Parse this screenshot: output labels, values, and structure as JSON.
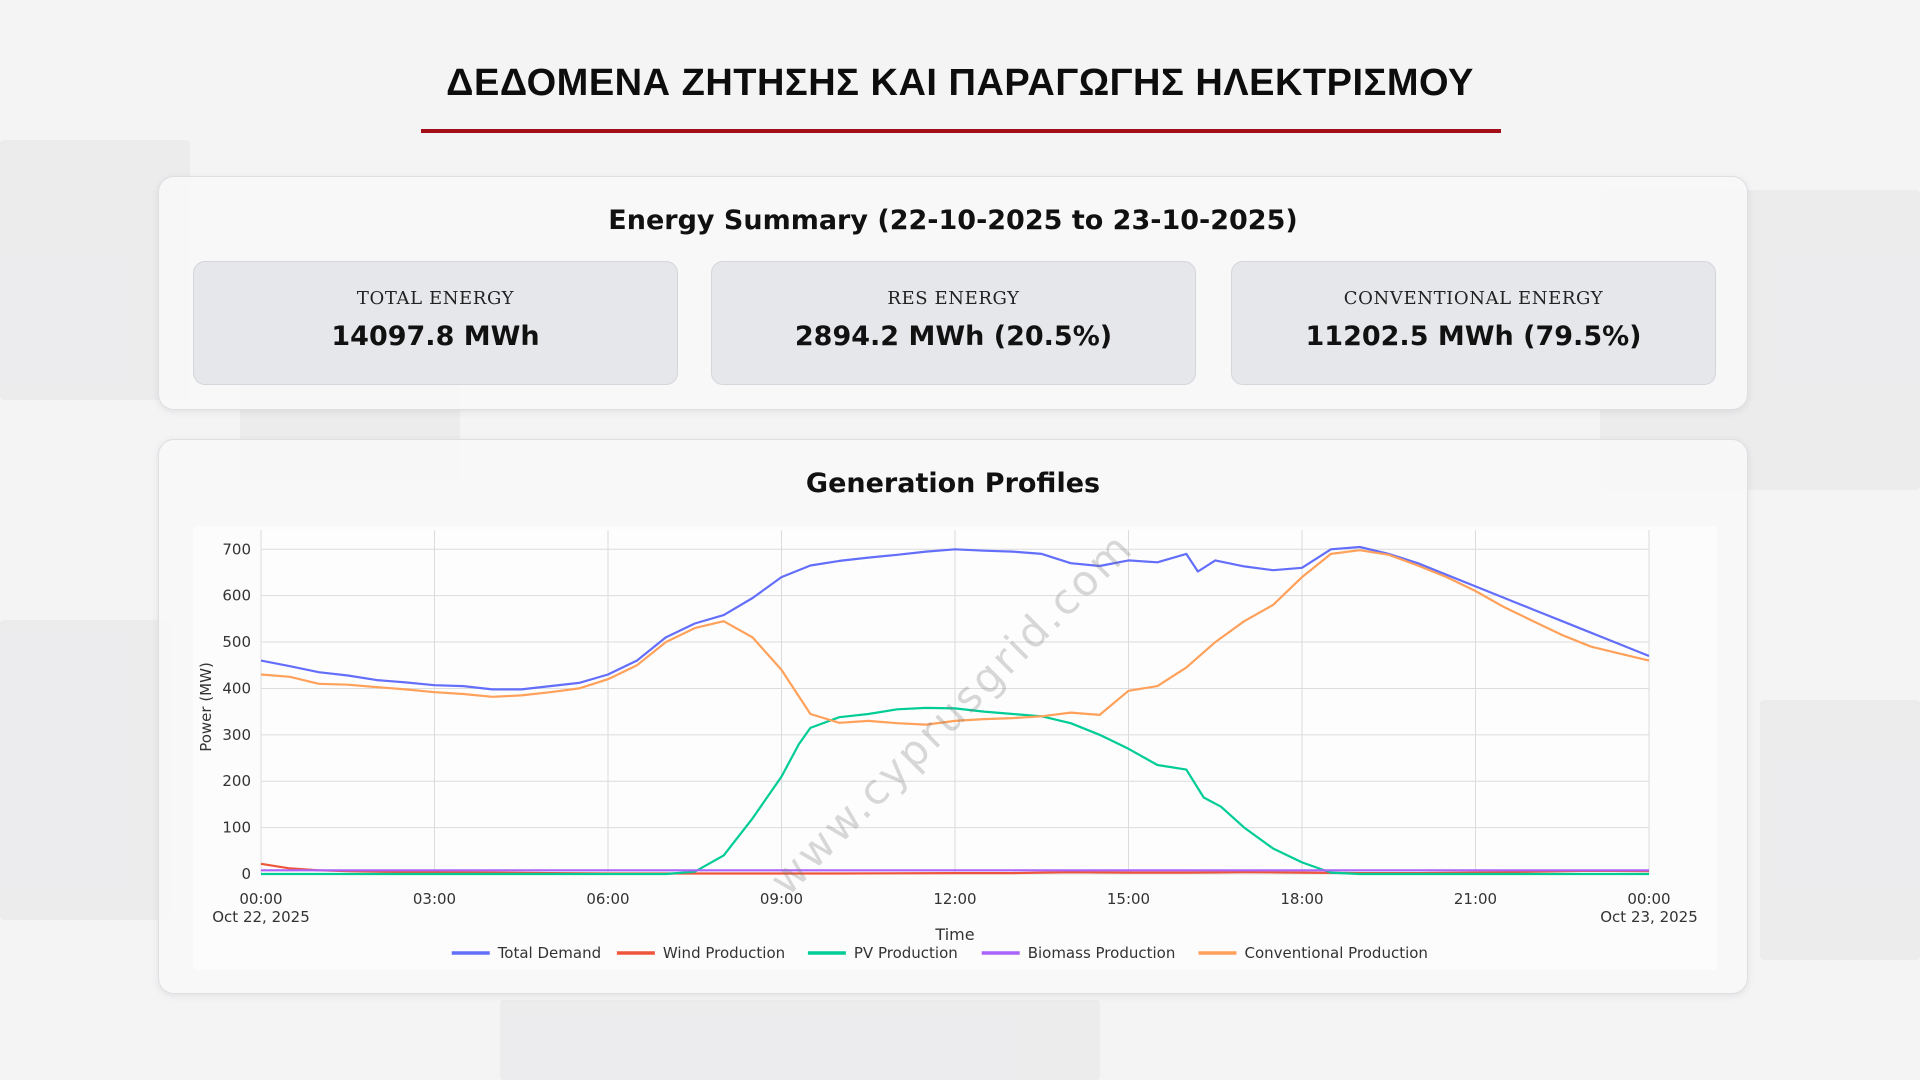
{
  "page": {
    "title": "ΔΕΔΟΜΕΝΑ ΖΗΤΗΣΗΣ ΚΑΙ ΠΑΡΑΓΩΓΗΣ ΗΛΕΚΤΡΙΣΜΟΥ",
    "accent_color": "#a30e1a",
    "watermark": "www.cyprusgrid.com"
  },
  "summary": {
    "heading": "Energy Summary (22-10-2025 to 23-10-2025)",
    "cards": [
      {
        "label": "TOTAL ENERGY",
        "value": "14097.8 MWh"
      },
      {
        "label": "RES ENERGY",
        "value": "2894.2 MWh (20.5%)"
      },
      {
        "label": "CONVENTIONAL ENERGY",
        "value": "11202.5 MWh (79.5%)"
      }
    ]
  },
  "profiles": {
    "heading": "Generation Profiles"
  },
  "chart_data": {
    "type": "line",
    "title": "Generation Profiles",
    "xlabel": "Time",
    "ylabel": "Power (MW)",
    "ylim": [
      0,
      720
    ],
    "yticks": [
      0,
      100,
      200,
      300,
      400,
      500,
      600,
      700
    ],
    "xlim": [
      0,
      24
    ],
    "xticks": [
      {
        "x": 0,
        "label": "00:00",
        "sublabel": "Oct 22, 2025"
      },
      {
        "x": 3,
        "label": "03:00",
        "sublabel": ""
      },
      {
        "x": 6,
        "label": "06:00",
        "sublabel": ""
      },
      {
        "x": 9,
        "label": "09:00",
        "sublabel": ""
      },
      {
        "x": 12,
        "label": "12:00",
        "sublabel": ""
      },
      {
        "x": 15,
        "label": "15:00",
        "sublabel": ""
      },
      {
        "x": 18,
        "label": "18:00",
        "sublabel": ""
      },
      {
        "x": 21,
        "label": "21:00",
        "sublabel": ""
      },
      {
        "x": 24,
        "label": "00:00",
        "sublabel": "Oct 23, 2025"
      }
    ],
    "grid": true,
    "legend_position": "bottom",
    "series": [
      {
        "name": "Total Demand",
        "color": "#636efa",
        "points": [
          [
            0,
            460
          ],
          [
            0.5,
            448
          ],
          [
            1,
            435
          ],
          [
            1.5,
            428
          ],
          [
            2,
            418
          ],
          [
            2.5,
            413
          ],
          [
            3,
            407
          ],
          [
            3.5,
            405
          ],
          [
            4,
            398
          ],
          [
            4.5,
            398
          ],
          [
            5,
            405
          ],
          [
            5.5,
            412
          ],
          [
            6,
            430
          ],
          [
            6.5,
            460
          ],
          [
            7,
            510
          ],
          [
            7.5,
            540
          ],
          [
            8,
            558
          ],
          [
            8.5,
            595
          ],
          [
            9,
            640
          ],
          [
            9.5,
            665
          ],
          [
            10,
            675
          ],
          [
            10.5,
            682
          ],
          [
            11,
            688
          ],
          [
            11.5,
            695
          ],
          [
            12,
            700
          ],
          [
            12.5,
            697
          ],
          [
            13,
            695
          ],
          [
            13.5,
            690
          ],
          [
            14,
            670
          ],
          [
            14.5,
            664
          ],
          [
            15,
            676
          ],
          [
            15.5,
            672
          ],
          [
            16,
            690
          ],
          [
            16.2,
            652
          ],
          [
            16.5,
            676
          ],
          [
            17,
            663
          ],
          [
            17.5,
            655
          ],
          [
            18,
            660
          ],
          [
            18.5,
            700
          ],
          [
            19,
            705
          ],
          [
            19.5,
            690
          ],
          [
            20,
            670
          ],
          [
            20.5,
            645
          ],
          [
            21,
            620
          ],
          [
            21.5,
            595
          ],
          [
            22,
            570
          ],
          [
            22.5,
            545
          ],
          [
            23,
            520
          ],
          [
            23.5,
            495
          ],
          [
            24,
            470
          ]
        ]
      },
      {
        "name": "Wind Production",
        "color": "#ef553b",
        "points": [
          [
            0,
            22
          ],
          [
            0.5,
            12
          ],
          [
            1,
            8
          ],
          [
            1.5,
            6
          ],
          [
            2,
            5
          ],
          [
            3,
            4
          ],
          [
            4,
            3
          ],
          [
            5,
            2
          ],
          [
            6,
            1
          ],
          [
            8,
            1
          ],
          [
            10,
            1
          ],
          [
            12,
            2
          ],
          [
            13,
            2
          ],
          [
            14,
            4
          ],
          [
            15,
            3
          ],
          [
            16,
            3
          ],
          [
            17,
            4
          ],
          [
            18,
            3
          ],
          [
            19,
            2
          ],
          [
            20,
            2
          ],
          [
            21,
            3
          ],
          [
            22,
            5
          ],
          [
            23,
            7
          ],
          [
            24,
            6
          ]
        ]
      },
      {
        "name": "PV Production",
        "color": "#00cc96",
        "points": [
          [
            0,
            0
          ],
          [
            6,
            0
          ],
          [
            7,
            0
          ],
          [
            7.5,
            5
          ],
          [
            8,
            40
          ],
          [
            8.5,
            120
          ],
          [
            9,
            210
          ],
          [
            9.3,
            280
          ],
          [
            9.5,
            315
          ],
          [
            10,
            338
          ],
          [
            10.5,
            345
          ],
          [
            11,
            355
          ],
          [
            11.5,
            358
          ],
          [
            12,
            357
          ],
          [
            12.5,
            350
          ],
          [
            13,
            345
          ],
          [
            13.5,
            340
          ],
          [
            14,
            325
          ],
          [
            14.5,
            300
          ],
          [
            15,
            270
          ],
          [
            15.5,
            235
          ],
          [
            16,
            225
          ],
          [
            16.3,
            165
          ],
          [
            16.6,
            145
          ],
          [
            17,
            100
          ],
          [
            17.5,
            55
          ],
          [
            18,
            25
          ],
          [
            18.5,
            3
          ],
          [
            19,
            0
          ],
          [
            24,
            0
          ]
        ]
      },
      {
        "name": "Biomass Production",
        "color": "#ab63fa",
        "points": [
          [
            0,
            8
          ],
          [
            3,
            8
          ],
          [
            6,
            8
          ],
          [
            9,
            8
          ],
          [
            12,
            8
          ],
          [
            15,
            8
          ],
          [
            18,
            8
          ],
          [
            21,
            8
          ],
          [
            24,
            8
          ]
        ]
      },
      {
        "name": "Conventional Production",
        "color": "#ffa15a",
        "points": [
          [
            0,
            430
          ],
          [
            0.5,
            425
          ],
          [
            1,
            410
          ],
          [
            1.5,
            408
          ],
          [
            2,
            403
          ],
          [
            2.5,
            398
          ],
          [
            3,
            392
          ],
          [
            3.5,
            388
          ],
          [
            4,
            382
          ],
          [
            4.5,
            385
          ],
          [
            5,
            392
          ],
          [
            5.5,
            400
          ],
          [
            6,
            420
          ],
          [
            6.5,
            450
          ],
          [
            7,
            500
          ],
          [
            7.5,
            530
          ],
          [
            8,
            545
          ],
          [
            8.5,
            510
          ],
          [
            9,
            440
          ],
          [
            9.5,
            345
          ],
          [
            10,
            326
          ],
          [
            10.5,
            330
          ],
          [
            11,
            325
          ],
          [
            11.5,
            322
          ],
          [
            12,
            330
          ],
          [
            12.5,
            334
          ],
          [
            13,
            336
          ],
          [
            13.5,
            340
          ],
          [
            14,
            348
          ],
          [
            14.5,
            343
          ],
          [
            15,
            395
          ],
          [
            15.5,
            405
          ],
          [
            16,
            445
          ],
          [
            16.5,
            500
          ],
          [
            17,
            545
          ],
          [
            17.5,
            580
          ],
          [
            18,
            640
          ],
          [
            18.5,
            690
          ],
          [
            19,
            698
          ],
          [
            19.5,
            688
          ],
          [
            20,
            665
          ],
          [
            20.5,
            640
          ],
          [
            21,
            610
          ],
          [
            21.5,
            575
          ],
          [
            22,
            545
          ],
          [
            22.5,
            515
          ],
          [
            23,
            490
          ],
          [
            23.5,
            475
          ],
          [
            24,
            460
          ]
        ]
      }
    ]
  }
}
